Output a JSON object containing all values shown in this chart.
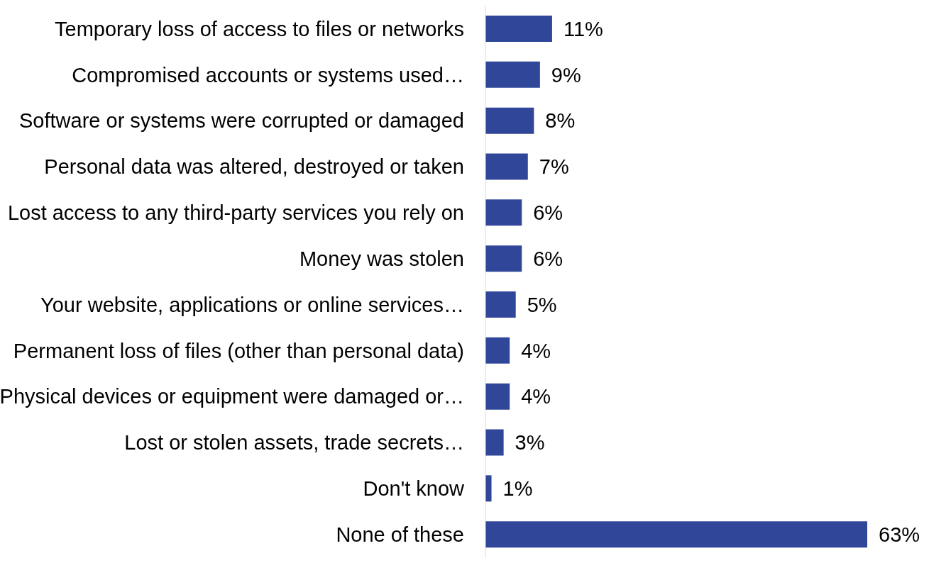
{
  "chart_data": {
    "type": "bar",
    "orientation": "horizontal",
    "value_labels": [
      "11%",
      "9%",
      "8%",
      "7%",
      "6%",
      "6%",
      "5%",
      "4%",
      "4%",
      "3%",
      "1%",
      "63%"
    ],
    "color": "#2f4699",
    "categories": [
      "Temporary loss of access to files or networks",
      "Compromised accounts or systems used…",
      "Software or systems were corrupted or damaged",
      "Personal data was altered, destroyed or taken",
      "Lost access to any third-party services you rely on",
      "Money was stolen",
      "Your website, applications or online services…",
      "Permanent loss of files (other than personal data)",
      "Physical devices or equipment were damaged or…",
      "Lost or stolen assets, trade secrets…",
      "Don't know",
      "None of these"
    ],
    "values": [
      11,
      9,
      8,
      7,
      6,
      6,
      5,
      4,
      4,
      3,
      1,
      63
    ]
  }
}
